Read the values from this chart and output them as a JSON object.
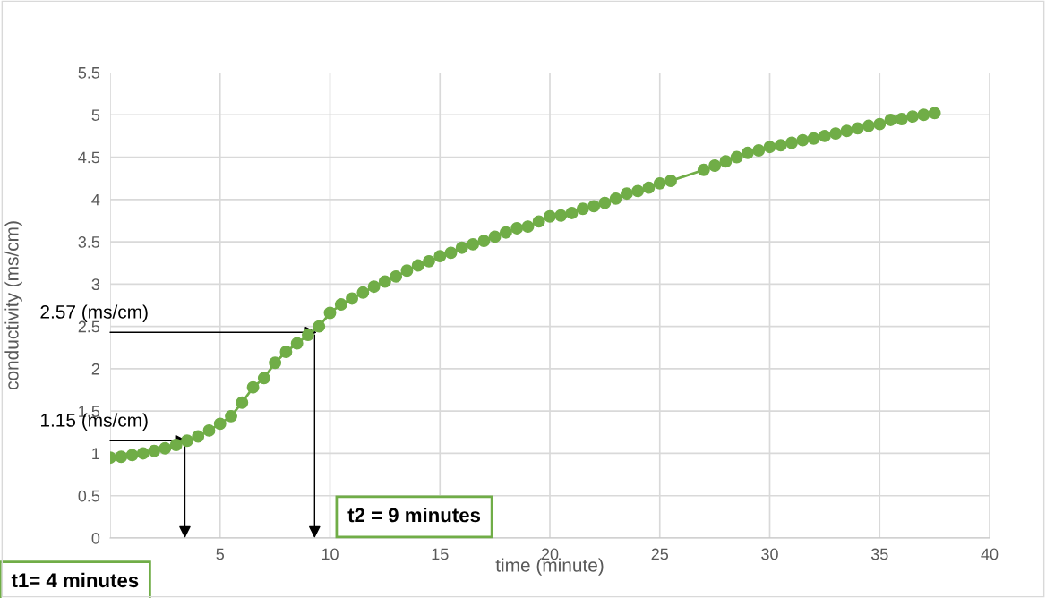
{
  "chart_data": {
    "type": "line",
    "xlabel": "time (minute)",
    "ylabel": "conductivity (ms/cm)",
    "x": [
      0,
      0.5,
      1,
      1.5,
      2,
      2.5,
      3,
      3.5,
      4,
      4.5,
      5,
      5.5,
      6,
      6.5,
      7,
      7.5,
      8,
      8.5,
      9,
      9.5,
      10,
      10.5,
      11,
      11.5,
      12,
      12.5,
      13,
      13.5,
      14,
      14.5,
      15,
      15.5,
      16,
      16.5,
      17,
      17.5,
      18,
      18.5,
      19,
      19.5,
      20,
      20.5,
      21,
      21.5,
      22,
      22.5,
      23,
      23.5,
      24,
      24.5,
      25,
      25.5,
      27,
      27.5,
      28,
      28.5,
      29,
      29.5,
      30,
      30.5,
      31,
      31.5,
      32,
      32.5,
      33,
      33.5,
      34,
      34.5,
      35,
      35.5,
      36,
      36.5,
      37,
      37.5
    ],
    "series": [
      {
        "color": "#70ad47",
        "values": [
          0.95,
          0.96,
          0.98,
          1.0,
          1.03,
          1.06,
          1.1,
          1.15,
          1.2,
          1.27,
          1.35,
          1.44,
          1.6,
          1.78,
          1.89,
          2.07,
          2.2,
          2.3,
          2.4,
          2.5,
          2.66,
          2.76,
          2.83,
          2.9,
          2.97,
          3.03,
          3.09,
          3.16,
          3.22,
          3.27,
          3.33,
          3.37,
          3.43,
          3.47,
          3.51,
          3.56,
          3.61,
          3.66,
          3.68,
          3.74,
          3.8,
          3.81,
          3.84,
          3.89,
          3.92,
          3.96,
          4.01,
          4.07,
          4.1,
          4.14,
          4.19,
          4.22,
          4.35,
          4.4,
          4.45,
          4.5,
          4.55,
          4.58,
          4.62,
          4.64,
          4.67,
          4.7,
          4.72,
          4.75,
          4.78,
          4.81,
          4.84,
          4.87,
          4.89,
          4.94,
          4.95,
          4.98,
          5.0,
          5.02
        ]
      }
    ],
    "xlim": [
      0,
      40
    ],
    "xticks": [
      {
        "value": 0,
        "label": null
      },
      5,
      10,
      15,
      20,
      25,
      30,
      35,
      40
    ],
    "ylim": [
      0,
      5.5
    ],
    "yticks": [
      0,
      0.5,
      1,
      1.5,
      2,
      2.5,
      3,
      3.5,
      4,
      4.5,
      5,
      5.5
    ],
    "grid": true,
    "marker": "circle",
    "line_style": "solid",
    "annotations": [
      {
        "text": "2.57 (ms/cm)",
        "x": 9.4,
        "y": 2.43
      },
      {
        "text": "1.15 (ms/cm)",
        "x": 3.5,
        "y": 1.15
      },
      "t1= 4 minutes",
      "t2 = 9 minutes"
    ]
  }
}
